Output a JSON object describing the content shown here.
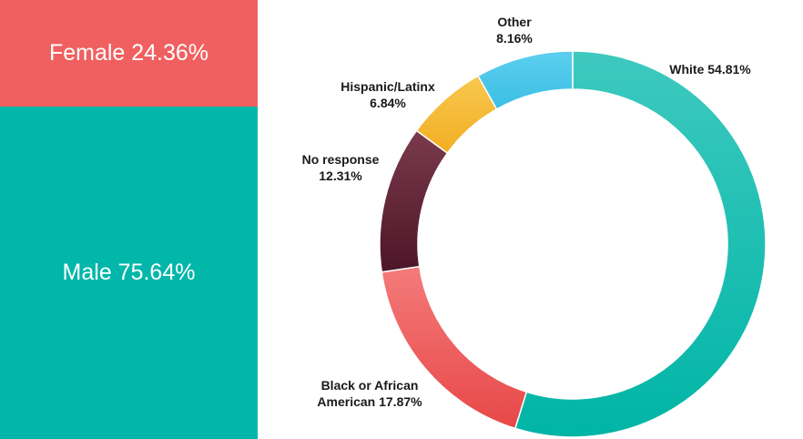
{
  "chart_data": [
    {
      "type": "bar",
      "subtype": "stacked-100",
      "categories": [
        "Female",
        "Male"
      ],
      "values": [
        24.36,
        75.64
      ],
      "unit": "%",
      "colors": [
        "#f16060",
        "#00b7aa"
      ],
      "labels": [
        "Female 24.36%",
        "Male 75.64%"
      ]
    },
    {
      "type": "pie",
      "subtype": "donut",
      "categories": [
        "White",
        "Black or African American",
        "No response",
        "Hispanic/Latinx",
        "Other"
      ],
      "values": [
        54.81,
        17.87,
        12.31,
        6.84,
        8.16
      ],
      "unit": "%",
      "colors": [
        "#11bdb0",
        "#f06060",
        "#6b2a3c",
        "#f6bb38",
        "#4cc8ea"
      ],
      "labels": [
        [
          "White 54.81%"
        ],
        [
          "Black or African",
          "American 17.87%"
        ],
        [
          "No response",
          "12.31%"
        ],
        [
          "Hispanic/Latinx",
          "6.84%"
        ],
        [
          "Other",
          "8.16%"
        ]
      ]
    }
  ]
}
